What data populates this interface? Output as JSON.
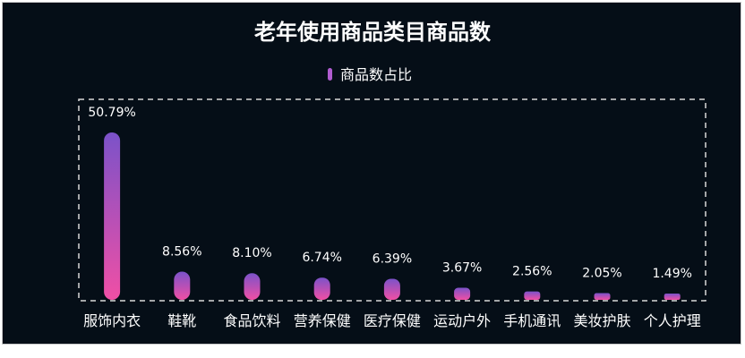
{
  "chart_data": {
    "type": "bar",
    "title": "老年使用商品类目商品数",
    "categories": [
      "服饰内衣",
      "鞋靴",
      "食品饮料",
      "营养保健",
      "医疗保健",
      "运动户外",
      "手机通讯",
      "美妆护肤",
      "个人护理"
    ],
    "series": [
      {
        "name": "商品数占比",
        "values": [
          50.79,
          8.56,
          8.1,
          6.74,
          6.39,
          3.67,
          2.56,
          2.05,
          1.49
        ],
        "labels": [
          "50.79%",
          "8.56%",
          "8.10%",
          "6.74%",
          "6.39%",
          "3.67%",
          "2.56%",
          "2.05%",
          "1.49%"
        ]
      }
    ],
    "ylim": [
      0,
      50.79
    ],
    "grid": false,
    "legend": "top-center",
    "colors": {
      "background": "#050e17",
      "bar_top": "#7b52c9",
      "bar_bottom": "#f04fa5",
      "legend_marker": "#b05cd0",
      "border": "#d9d9d9",
      "text": "#ffffff"
    }
  }
}
